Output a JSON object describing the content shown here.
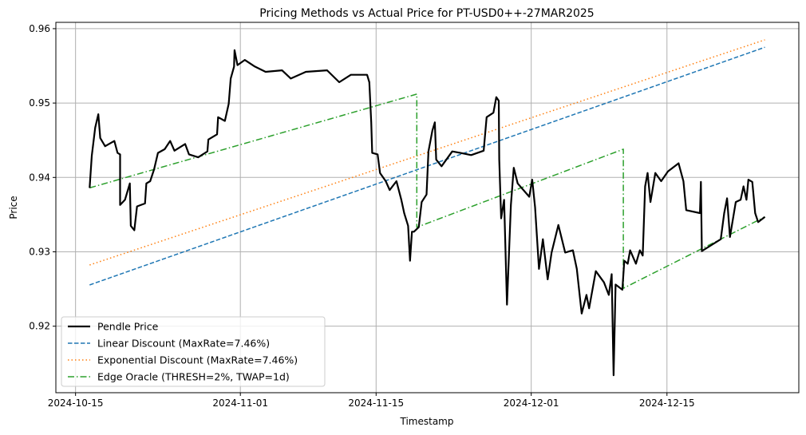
{
  "chart_data": {
    "type": "line",
    "title": "Pricing Methods vs Actual Price for PT-USD0++-27MAR2025",
    "xlabel": "Timestamp",
    "ylabel": "Price",
    "x_units": "days since 2024-10-15",
    "xlim": [
      -2.03,
      74.6
    ],
    "ylim": [
      0.91106,
      0.96085
    ],
    "grid": true,
    "legend_position": "lower-left",
    "x_ticks": [
      {
        "value": 0,
        "label": "2024-10-15"
      },
      {
        "value": 17,
        "label": "2024-11-01"
      },
      {
        "value": 31,
        "label": "2024-11-15"
      },
      {
        "value": 47,
        "label": "2024-12-01"
      },
      {
        "value": 61,
        "label": "2024-12-15"
      }
    ],
    "y_ticks": [
      {
        "value": 0.92,
        "label": "0.92"
      },
      {
        "value": 0.93,
        "label": "0.93"
      },
      {
        "value": 0.94,
        "label": "0.94"
      },
      {
        "value": 0.95,
        "label": "0.95"
      },
      {
        "value": 0.96,
        "label": "0.96"
      }
    ],
    "series": [
      {
        "name": "Pendle Price",
        "color": "#000000",
        "style": "solid",
        "x": [
          1.45,
          1.67,
          2.03,
          2.35,
          2.55,
          3.05,
          4.0,
          4.33,
          4.6,
          4.6,
          5.1,
          5.6,
          5.7,
          6.06,
          6.34,
          7.16,
          7.3,
          7.7,
          8.1,
          8.5,
          9.2,
          9.76,
          10.2,
          11.3,
          11.7,
          12.65,
          13.6,
          13.7,
          14.6,
          14.7,
          15.4,
          15.8,
          16.0,
          16.35,
          16.4,
          16.7,
          17.45,
          18.5,
          19.6,
          21.3,
          22.2,
          23.75,
          25.95,
          27.2,
          28.4,
          30.07,
          30.3,
          30.5,
          30.6,
          31.16,
          31.4,
          32.0,
          32.4,
          33.1,
          33.6,
          33.9,
          34.3,
          34.5,
          34.7,
          34.9,
          35.4,
          35.7,
          36.2,
          36.4,
          36.8,
          37.06,
          37.2,
          37.75,
          38.85,
          39.7,
          40.8,
          42.1,
          42.4,
          43.1,
          43.4,
          43.65,
          43.7,
          43.9,
          44.2,
          44.5,
          44.9,
          45.2,
          45.6,
          46.8,
          47.1,
          47.4,
          47.8,
          48.2,
          48.7,
          49.1,
          49.8,
          50.5,
          51.3,
          51.7,
          52.2,
          52.7,
          52.97,
          53.66,
          54.5,
          55.0,
          55.3,
          55.5,
          55.7,
          56.4,
          56.6,
          56.95,
          57.2,
          57.8,
          58.2,
          58.5,
          58.75,
          59.0,
          59.3,
          59.8,
          60.4,
          61.1,
          62.2,
          62.7,
          62.99,
          64.4,
          64.5,
          64.6,
          66.55,
          66.9,
          67.2,
          67.5,
          68.1,
          68.6,
          68.9,
          69.2,
          69.4,
          69.8,
          70.1,
          70.4,
          71.1
        ],
        "y": [
          0.9386,
          0.9429,
          0.9467,
          0.9485,
          0.9453,
          0.9442,
          0.9449,
          0.9433,
          0.9431,
          0.9363,
          0.937,
          0.9392,
          0.9335,
          0.9329,
          0.9361,
          0.9365,
          0.9392,
          0.9395,
          0.9411,
          0.9433,
          0.9438,
          0.9449,
          0.9436,
          0.9445,
          0.9431,
          0.9427,
          0.9435,
          0.9451,
          0.9458,
          0.9481,
          0.9476,
          0.9499,
          0.9533,
          0.9549,
          0.9571,
          0.9551,
          0.9558,
          0.9549,
          0.9542,
          0.9544,
          0.9533,
          0.9542,
          0.9544,
          0.9528,
          0.9538,
          0.9538,
          0.9528,
          0.9474,
          0.9433,
          0.9431,
          0.9406,
          0.9395,
          0.9383,
          0.9395,
          0.937,
          0.9352,
          0.9335,
          0.9288,
          0.9327,
          0.9327,
          0.9333,
          0.9367,
          0.9377,
          0.9435,
          0.9463,
          0.9474,
          0.9424,
          0.9415,
          0.9435,
          0.9433,
          0.943,
          0.9436,
          0.9481,
          0.9487,
          0.9508,
          0.9503,
          0.9424,
          0.9345,
          0.937,
          0.9229,
          0.9363,
          0.9413,
          0.9392,
          0.9374,
          0.9397,
          0.936,
          0.9277,
          0.9317,
          0.9263,
          0.9299,
          0.9336,
          0.9299,
          0.9302,
          0.9277,
          0.9217,
          0.9242,
          0.9224,
          0.9274,
          0.9259,
          0.9242,
          0.927,
          0.9134,
          0.9256,
          0.9249,
          0.9288,
          0.9284,
          0.9302,
          0.9284,
          0.9302,
          0.9295,
          0.9388,
          0.9406,
          0.9367,
          0.9406,
          0.9395,
          0.9408,
          0.9419,
          0.9395,
          0.9356,
          0.9352,
          0.9394,
          0.9301,
          0.9317,
          0.9352,
          0.9372,
          0.932,
          0.9367,
          0.937,
          0.9388,
          0.937,
          0.9397,
          0.9394,
          0.9352,
          0.934,
          0.9347
        ]
      },
      {
        "name": "Linear Discount (MaxRate=7.46%)",
        "color": "#1f77b4",
        "style": "dashed",
        "x": [
          1.45,
          71.1
        ],
        "y": [
          0.92555,
          0.9575
        ]
      },
      {
        "name": "Exponential Discount (MaxRate=7.46%)",
        "color": "#ff7f0e",
        "style": "dotted",
        "x": [
          1.45,
          33.4,
          71.1
        ],
        "y": [
          0.92823,
          0.9421,
          0.9585
        ]
      },
      {
        "name": "Edge Oracle (THRESH=2%, TWAP=1d)",
        "color": "#2ca02c",
        "style": "dashdot",
        "x": [
          1.45,
          35.2,
          35.2,
          56.5,
          56.5,
          71.1
        ],
        "y": [
          0.9386,
          0.9512,
          0.9333,
          0.9438,
          0.9251,
          0.9347
        ]
      }
    ]
  }
}
